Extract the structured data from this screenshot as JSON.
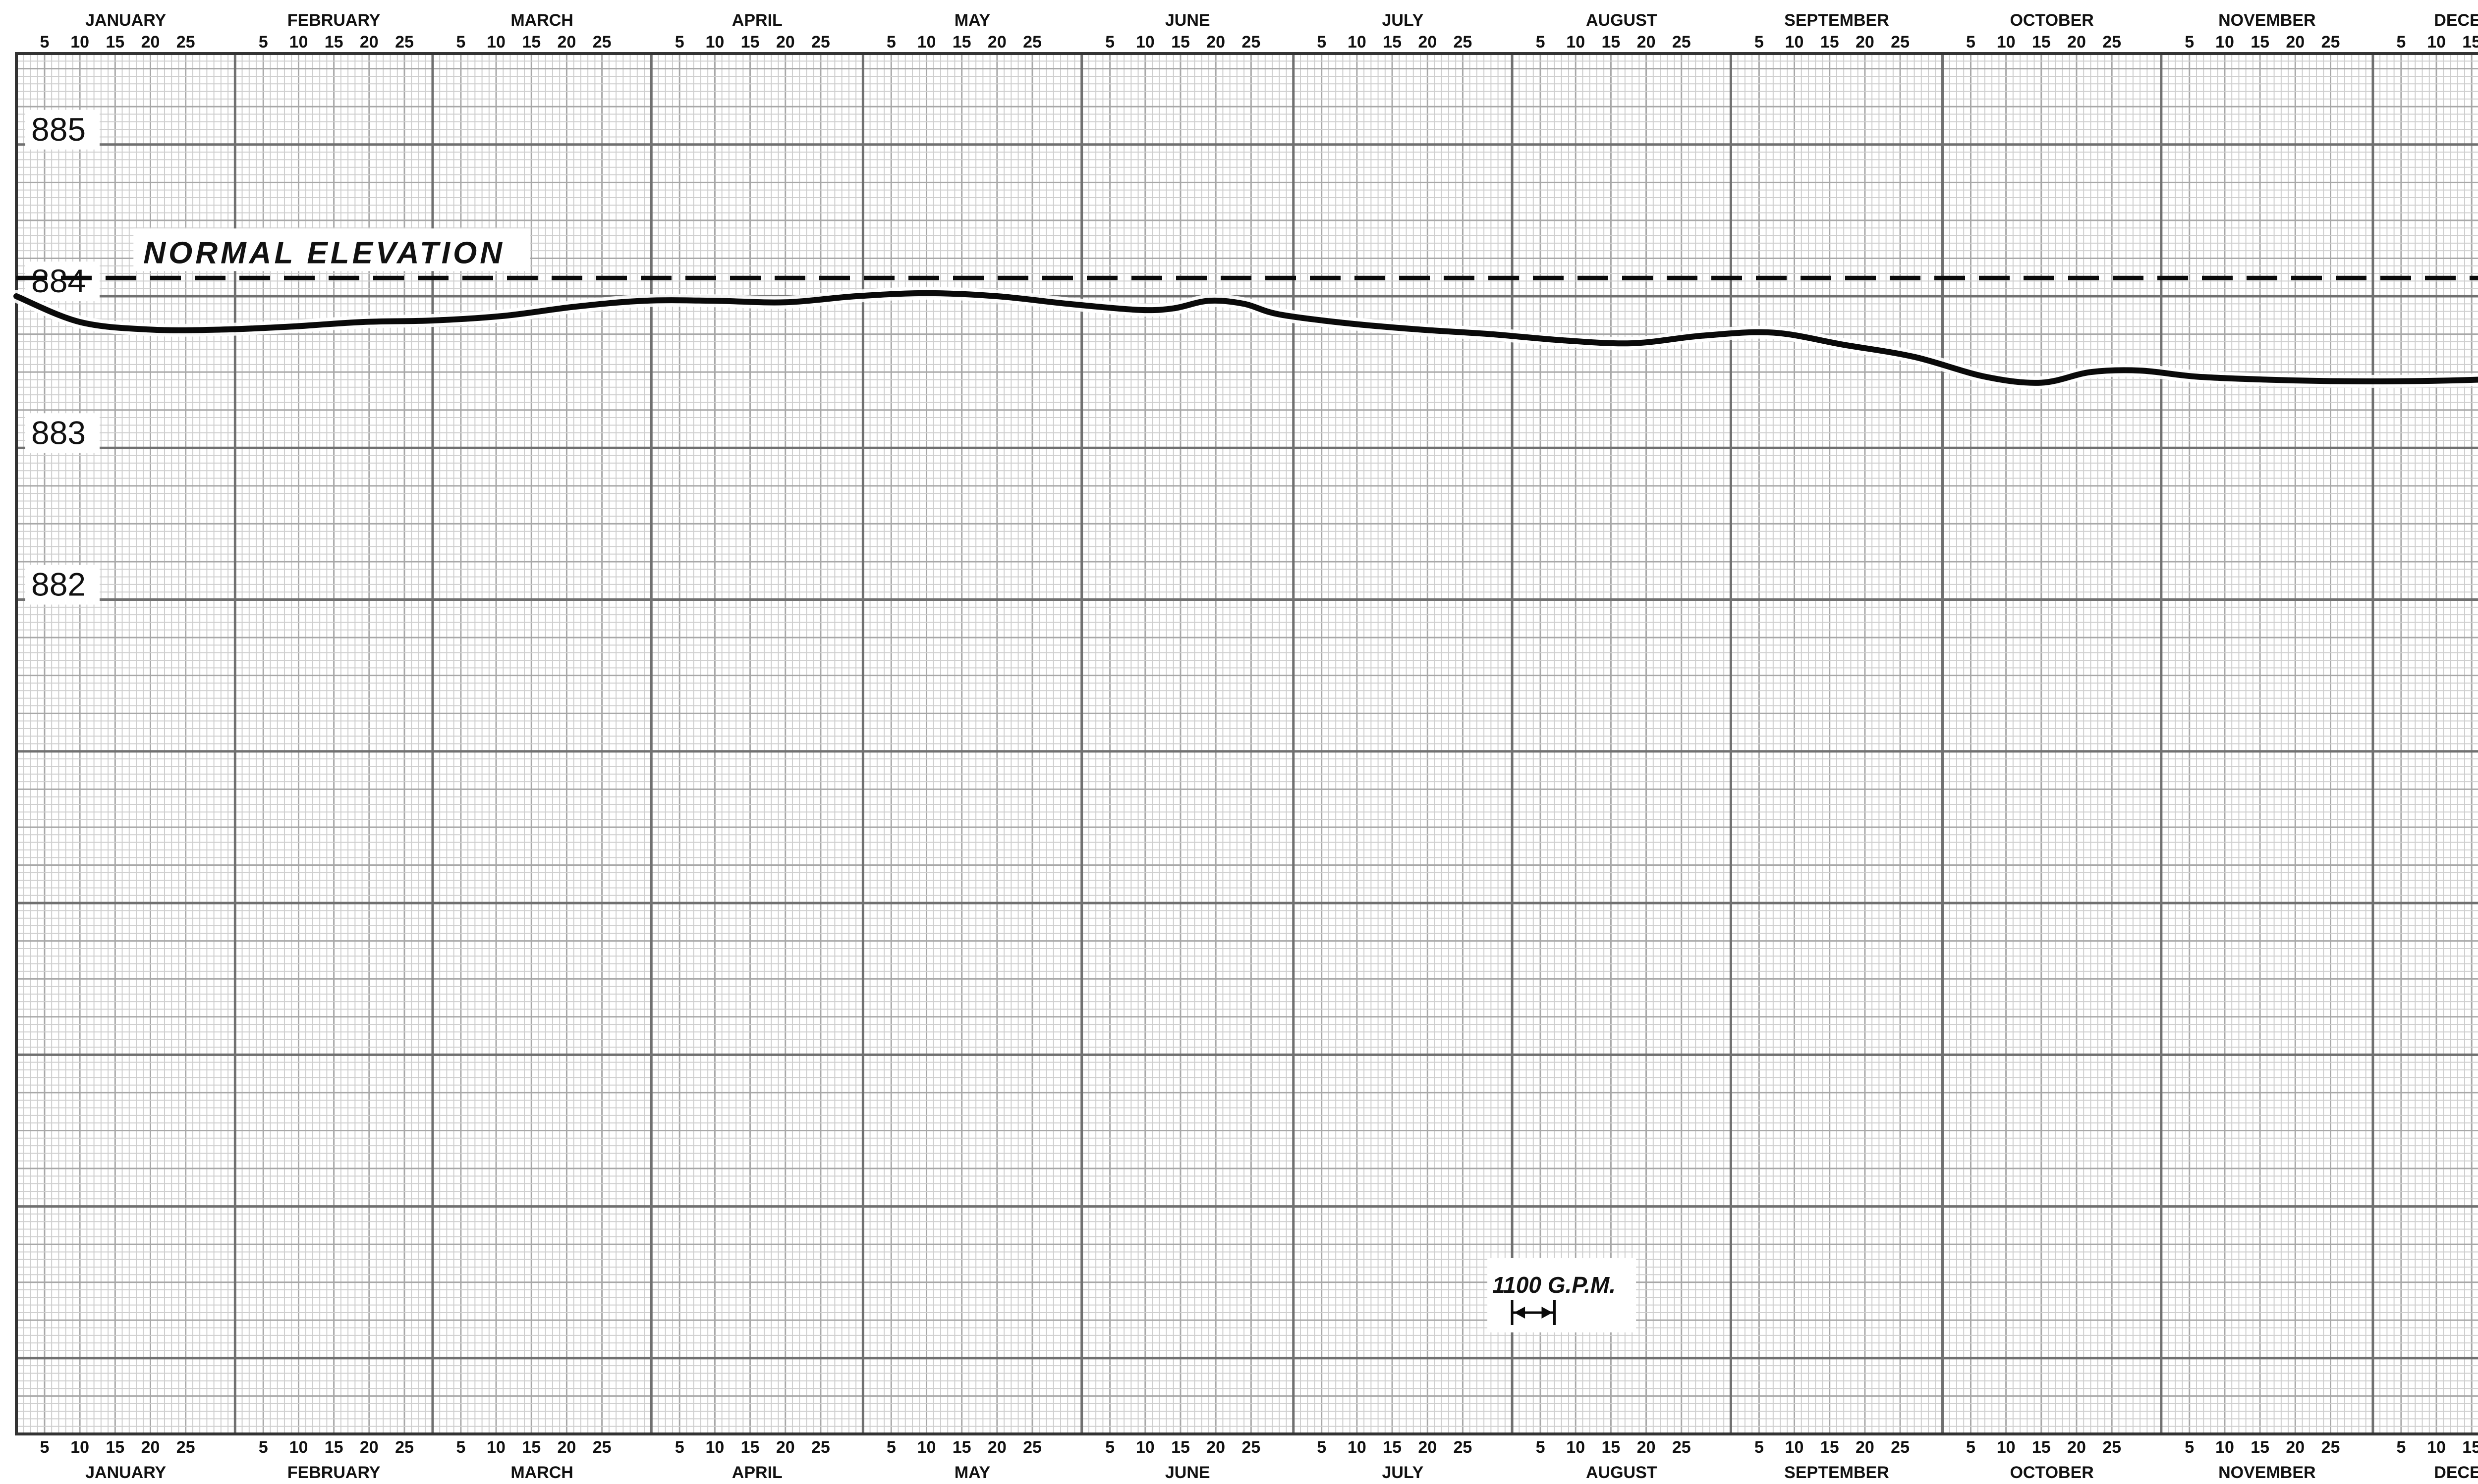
{
  "chart_data": {
    "type": "line",
    "title": "",
    "xlabel": "",
    "ylabel": "",
    "x_axis": {
      "months": [
        "JANUARY",
        "FEBRUARY",
        "MARCH",
        "APRIL",
        "MAY",
        "JUNE",
        "JULY",
        "AUGUST",
        "SEPTEMBER",
        "OCTOBER",
        "NOVEMBER",
        "DECEMBER"
      ],
      "day_ticks": [
        "5",
        "10",
        "15",
        "20",
        "25"
      ],
      "xlim": [
        1,
        365
      ],
      "unit": "day of year"
    },
    "y_axis": {
      "tick_labels": [
        "885",
        "884",
        "883",
        "882"
      ],
      "ylim": [
        876.5,
        885.6
      ]
    },
    "grid": true,
    "series": [
      {
        "name": "",
        "x": [
          1,
          10,
          20,
          30,
          40,
          50,
          60,
          70,
          80,
          90,
          100,
          110,
          120,
          130,
          140,
          150,
          160,
          165,
          170,
          175,
          180,
          190,
          200,
          210,
          220,
          230,
          240,
          250,
          260,
          270,
          280,
          288,
          295,
          302,
          310,
          320,
          330,
          340,
          350,
          365
        ],
        "y": [
          884.0,
          883.83,
          883.78,
          883.78,
          883.8,
          883.83,
          883.84,
          883.87,
          883.93,
          883.97,
          883.97,
          883.96,
          884.0,
          884.02,
          884.0,
          883.95,
          883.91,
          883.92,
          883.97,
          883.95,
          883.88,
          883.82,
          883.78,
          883.75,
          883.71,
          883.69,
          883.74,
          883.76,
          883.68,
          883.6,
          883.47,
          883.43,
          883.5,
          883.51,
          883.47,
          883.45,
          883.44,
          883.44,
          883.45,
          883.48
        ]
      }
    ],
    "reference_lines": [
      {
        "label": "NORMAL ELEVATION",
        "y": 884.12,
        "style": "dashed"
      }
    ],
    "annotations": [
      {
        "text": "1100 G.P.M.",
        "x_start": 213,
        "x_end": 219,
        "y": 877.3
      }
    ]
  },
  "colors": {
    "grid_minor": "#cfcfcf",
    "grid_major": "#707070",
    "line": "#0a0a0a"
  }
}
